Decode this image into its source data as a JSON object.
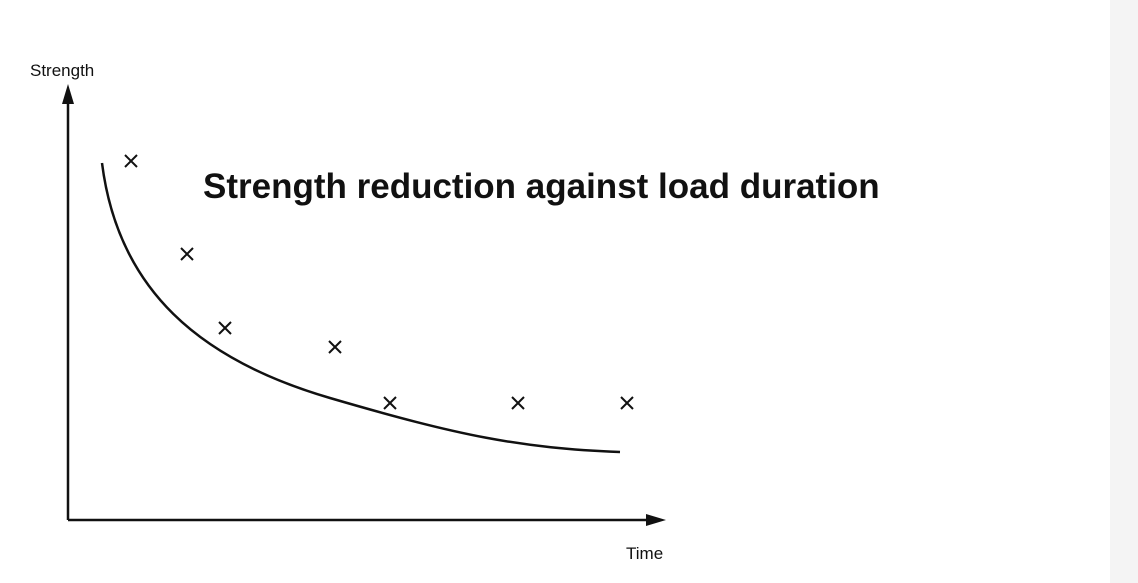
{
  "title": "Strength reduction against load duration",
  "y_axis_label": "Strength",
  "x_axis_label": "Time"
}
